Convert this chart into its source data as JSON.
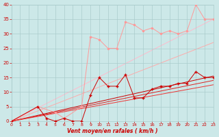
{
  "xlabel": "Vent moyen/en rafales ( km/h )",
  "bg_color": "#cce8e8",
  "grid_color": "#aacccc",
  "xlim": [
    0,
    23
  ],
  "ylim": [
    0,
    40
  ],
  "xticks": [
    0,
    1,
    2,
    3,
    4,
    5,
    6,
    7,
    8,
    9,
    10,
    11,
    12,
    13,
    14,
    15,
    16,
    17,
    18,
    19,
    20,
    21,
    22,
    23
  ],
  "yticks": [
    0,
    5,
    10,
    15,
    20,
    25,
    30,
    35,
    40
  ],
  "series": [
    {
      "name": "reg_light1",
      "x": [
        0,
        23
      ],
      "y": [
        0,
        35
      ],
      "color": "#ffbbcc",
      "lw": 0.7,
      "marker": "None",
      "ms": 0,
      "zorder": 1
    },
    {
      "name": "reg_light2",
      "x": [
        0,
        23
      ],
      "y": [
        0,
        27
      ],
      "color": "#ffaaaa",
      "lw": 0.7,
      "marker": "None",
      "ms": 0,
      "zorder": 1
    },
    {
      "name": "reg_dark1",
      "x": [
        0,
        23
      ],
      "y": [
        0,
        15.5
      ],
      "color": "#cc0000",
      "lw": 0.7,
      "marker": "None",
      "ms": 0,
      "zorder": 2
    },
    {
      "name": "reg_dark2",
      "x": [
        0,
        23
      ],
      "y": [
        0,
        14.0
      ],
      "color": "#dd2222",
      "lw": 0.7,
      "marker": "None",
      "ms": 0,
      "zorder": 2
    },
    {
      "name": "reg_dark3",
      "x": [
        0,
        23
      ],
      "y": [
        0,
        12.5
      ],
      "color": "#ee3333",
      "lw": 0.7,
      "marker": "None",
      "ms": 0,
      "zorder": 2
    },
    {
      "name": "data_light",
      "x": [
        0,
        3,
        5,
        6,
        8,
        9,
        10,
        11,
        12,
        13,
        14,
        15,
        16,
        17,
        18,
        19,
        20,
        21,
        22,
        23
      ],
      "y": [
        0,
        5,
        3,
        1,
        5,
        29,
        28,
        25,
        25,
        34,
        33,
        31,
        32,
        30,
        31,
        30,
        31,
        40,
        35,
        35
      ],
      "color": "#ff9999",
      "lw": 0.7,
      "marker": "o",
      "ms": 1.5,
      "zorder": 3
    },
    {
      "name": "data_dark",
      "x": [
        0,
        3,
        4,
        5,
        6,
        7,
        8,
        9,
        10,
        11,
        12,
        13,
        14,
        15,
        16,
        17,
        18,
        19,
        20,
        21,
        22,
        23
      ],
      "y": [
        0,
        5,
        1,
        0,
        1,
        0,
        0,
        9,
        15,
        12,
        12,
        16,
        8,
        8,
        11,
        12,
        12,
        13,
        13,
        17,
        15,
        15
      ],
      "color": "#cc0000",
      "lw": 0.7,
      "marker": "+",
      "ms": 2.5,
      "zorder": 4
    }
  ]
}
